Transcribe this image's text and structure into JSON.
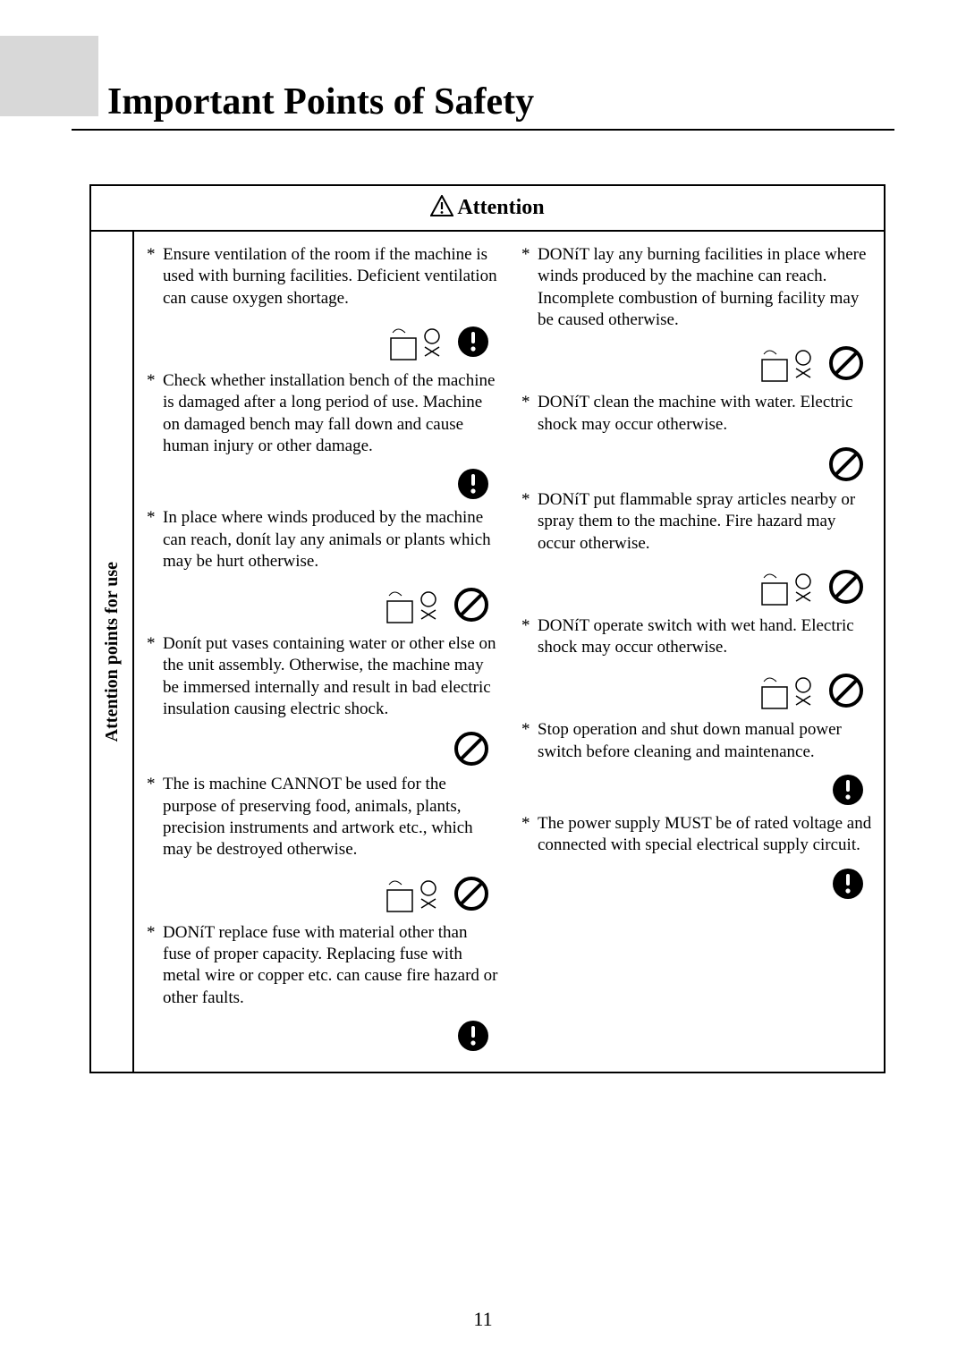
{
  "page": {
    "title": "Important Points of Safety",
    "page_number": "11"
  },
  "box": {
    "header": "Attention",
    "side_label": "Attention points for use"
  },
  "left_col": [
    {
      "text": "Ensure ventilation of the room if the machine is used with burning facilities. Deficient ventilation can cause oxygen shortage.",
      "icon": "mandatory",
      "illus": true
    },
    {
      "text": "Check whether installation bench of the machine is damaged after a long period of use. Machine on damaged bench may fall down and cause human injury or other damage.",
      "icon": "mandatory",
      "illus": false
    },
    {
      "text": "In place where winds produced by the machine can reach, donít lay any animals or plants which may be hurt otherwise.",
      "icon": "prohibit",
      "illus": true
    },
    {
      "text": "Donít put vases containing water or other else on the unit assembly. Otherwise, the machine may be immersed internally and result in bad electric insulation causing electric shock.",
      "icon": "prohibit",
      "illus": false
    },
    {
      "text": "The is machine CANNOT be used for the purpose of preserving food, animals, plants, precision instruments and artwork etc., which may be destroyed otherwise.",
      "icon": "prohibit",
      "illus": true
    },
    {
      "text": "DONíT replace fuse with material other than fuse of proper capacity. Replacing fuse with metal wire or copper etc. can cause fire hazard or other faults.",
      "icon": "mandatory",
      "illus": false
    }
  ],
  "right_col": [
    {
      "text": "DONíT lay any burning facilities in place where winds produced by the machine can reach. Incomplete combustion of burning facility may be caused otherwise.",
      "icon": "prohibit",
      "illus": true
    },
    {
      "text": "DONíT clean the machine with water. Electric shock may occur otherwise.",
      "icon": "prohibit",
      "illus": false
    },
    {
      "text": "DONíT put flammable spray articles nearby or spray them to the machine. Fire hazard may occur otherwise.",
      "icon": "prohibit",
      "illus": true
    },
    {
      "text": "DONíT operate switch with wet hand. Electric shock may occur otherwise.",
      "icon": "prohibit",
      "illus": true
    },
    {
      "text": "Stop operation and shut down manual power switch before cleaning and maintenance.",
      "icon": "mandatory",
      "illus": false
    },
    {
      "text": "The power supply MUST be of rated voltage and connected with special electrical supply circuit.",
      "icon": "mandatory",
      "illus": false
    }
  ],
  "colors": {
    "text": "#000000",
    "background": "#ffffff",
    "tab": "#d8d8d8"
  }
}
